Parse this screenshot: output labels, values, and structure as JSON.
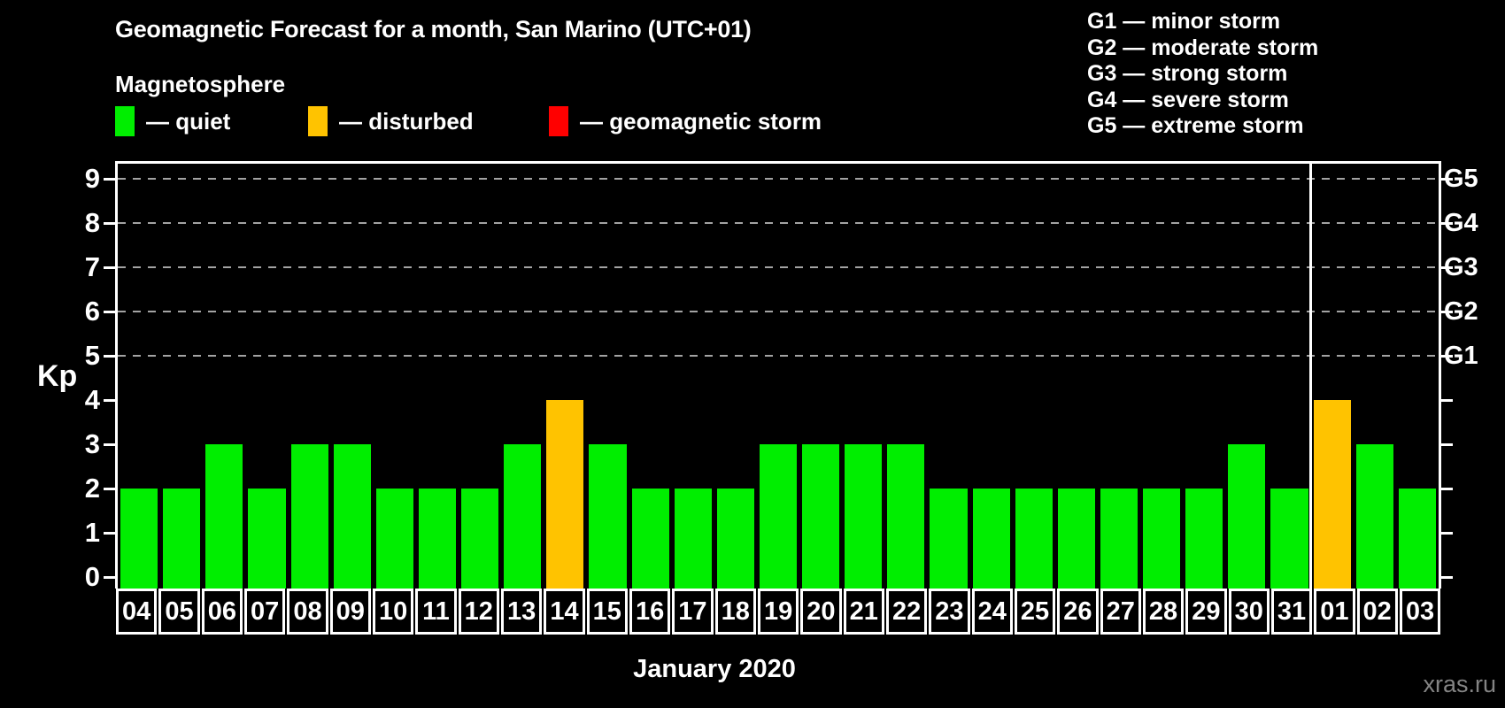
{
  "title": "Geomagnetic Forecast for a month, San Marino (UTC+01)",
  "subtitle": "Magnetosphere",
  "legend": {
    "items": [
      {
        "name": "quiet",
        "label": "— quiet",
        "color": "#00ee00"
      },
      {
        "name": "disturbed",
        "label": "— disturbed",
        "color": "#ffc300"
      },
      {
        "name": "storm",
        "label": "— geomagnetic storm",
        "color": "#ff0000"
      }
    ]
  },
  "g_scale_legend": [
    "G1 — minor storm",
    "G2 — moderate storm",
    "G3 — strong storm",
    "G4 — severe storm",
    "G5 — extreme storm"
  ],
  "watermark": "xras.ru",
  "chart_data": {
    "type": "bar",
    "title": "Geomagnetic Forecast for a month, San Marino (UTC+01)",
    "xlabel": "January 2020",
    "ylabel": "Kp",
    "ylim": [
      0,
      9.4
    ],
    "yticks": [
      0,
      1,
      2,
      3,
      4,
      5,
      6,
      7,
      8,
      9
    ],
    "grid_levels": [
      5,
      6,
      7,
      8,
      9
    ],
    "grid": "dashed horizontal at storm levels only",
    "legend_position": "top",
    "right_axis_labels": [
      {
        "label": "G1",
        "value": 5
      },
      {
        "label": "G2",
        "value": 6
      },
      {
        "label": "G3",
        "value": 7
      },
      {
        "label": "G4",
        "value": 8
      },
      {
        "label": "G5",
        "value": 9
      }
    ],
    "categories": [
      "04",
      "05",
      "06",
      "07",
      "08",
      "09",
      "10",
      "11",
      "12",
      "13",
      "14",
      "15",
      "16",
      "17",
      "18",
      "19",
      "20",
      "21",
      "22",
      "23",
      "24",
      "25",
      "26",
      "27",
      "28",
      "29",
      "30",
      "31",
      "01",
      "02",
      "03"
    ],
    "values": [
      2,
      2,
      3,
      2,
      3,
      3,
      2,
      2,
      2,
      3,
      4,
      3,
      2,
      2,
      2,
      3,
      3,
      3,
      3,
      2,
      2,
      2,
      2,
      2,
      2,
      2,
      3,
      2,
      4,
      3,
      2
    ],
    "statuses": [
      "quiet",
      "quiet",
      "quiet",
      "quiet",
      "quiet",
      "quiet",
      "quiet",
      "quiet",
      "quiet",
      "quiet",
      "disturbed",
      "quiet",
      "quiet",
      "quiet",
      "quiet",
      "quiet",
      "quiet",
      "quiet",
      "quiet",
      "quiet",
      "quiet",
      "quiet",
      "quiet",
      "quiet",
      "quiet",
      "quiet",
      "quiet",
      "quiet",
      "disturbed",
      "quiet",
      "quiet"
    ],
    "status_colors": {
      "quiet": "#00ee00",
      "disturbed": "#ffc300",
      "storm": "#ff0000"
    },
    "month_boundary_after_index": 27
  }
}
